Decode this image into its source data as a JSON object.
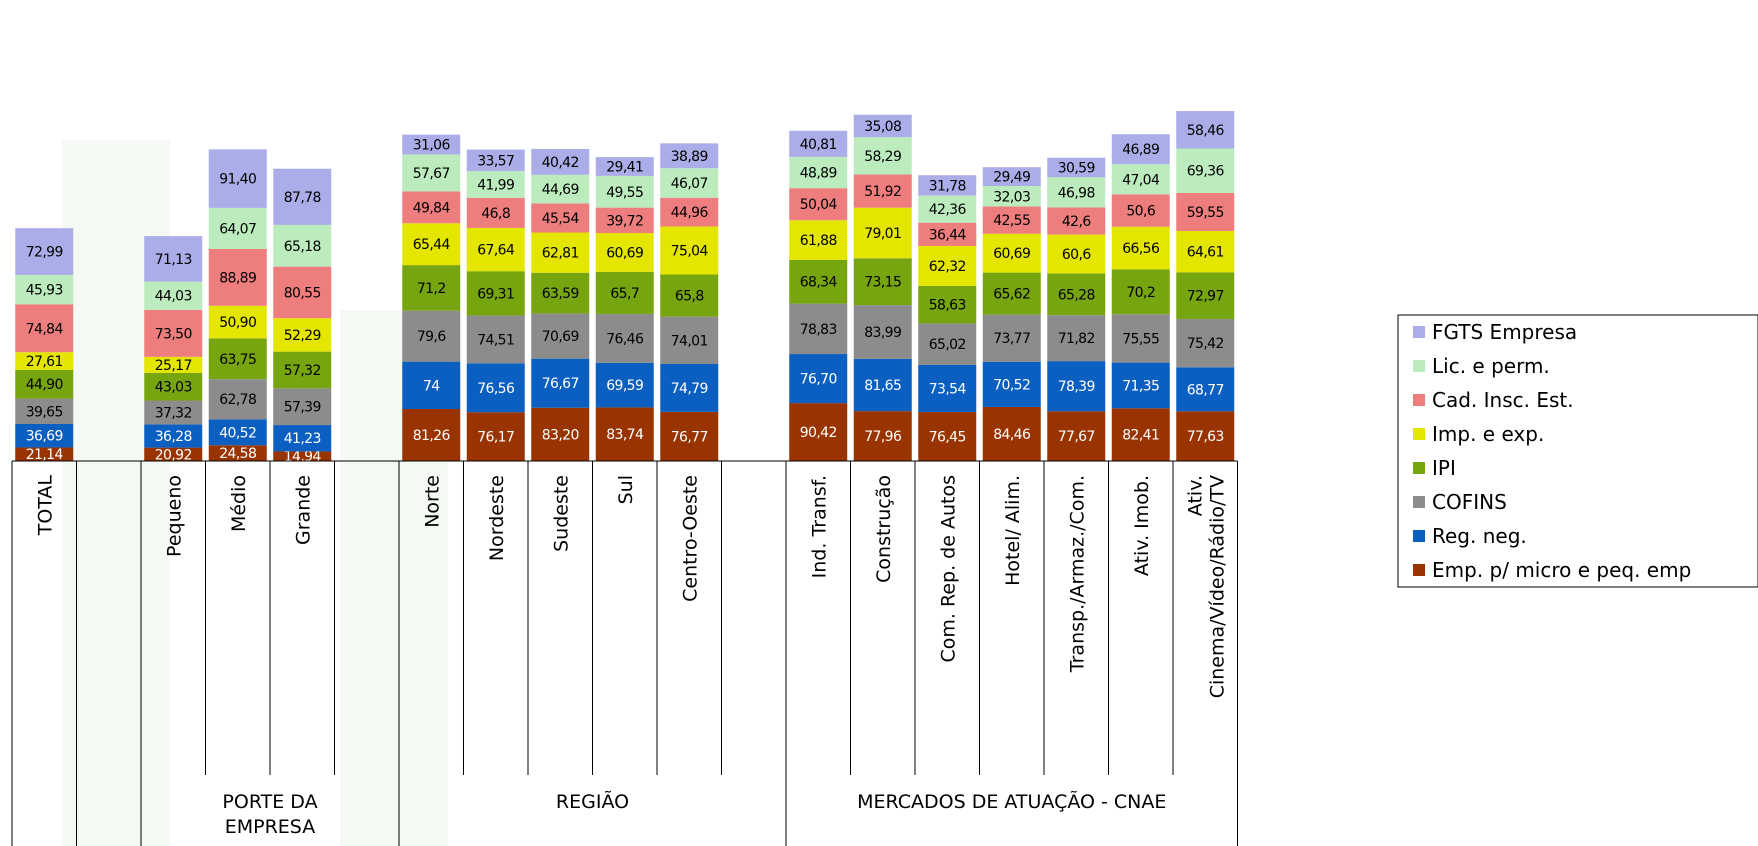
{
  "chart_data": {
    "type": "bar",
    "stacked": true,
    "legend_position": "right",
    "grid": false,
    "series": [
      {
        "name": "Emp. p/ micro e peq. emp",
        "color": "#993300"
      },
      {
        "name": "Reg. neg.",
        "color": "#0B5FC1"
      },
      {
        "name": "COFINS",
        "color": "#8C8C8C"
      },
      {
        "name": "IPI",
        "color": "#77A50F"
      },
      {
        "name": "Imp. e exp.",
        "color": "#E4E600"
      },
      {
        "name": "Cad. Insc. Est.",
        "color": "#EE7E7E"
      },
      {
        "name": "Lic. e perm.",
        "color": "#BCEBBE"
      },
      {
        "name": "FGTS Empresa",
        "color": "#ABADE8"
      }
    ],
    "categories": [
      {
        "label": "TOTAL",
        "group": 0,
        "values": [
          "21,14",
          "36,69",
          "39,65",
          "44,90",
          "27,61",
          "74,84",
          "45,93",
          "72,99"
        ]
      },
      {
        "label": "",
        "group": 0,
        "values": []
      },
      {
        "label": "Pequeno",
        "group": 1,
        "values": [
          "20,92",
          "36,28",
          "37,32",
          "43,03",
          "25,17",
          "73,50",
          "44,03",
          "71,13"
        ]
      },
      {
        "label": "Médio",
        "group": 1,
        "values": [
          "24,58",
          "40,52",
          "62,78",
          "63,75",
          "50,90",
          "88,89",
          "64,07",
          "91,40"
        ]
      },
      {
        "label": "Grande",
        "group": 1,
        "values": [
          "14,94",
          "41,23",
          "57,39",
          "57,32",
          "52,29",
          "80,55",
          "65,18",
          "87,78"
        ]
      },
      {
        "label": "",
        "group": 1,
        "values": []
      },
      {
        "label": "Norte",
        "group": 2,
        "values": [
          "81,26",
          "74",
          "79,6",
          "71,2",
          "65,44",
          "49,84",
          "57,67",
          "31,06"
        ]
      },
      {
        "label": "Nordeste",
        "group": 2,
        "values": [
          "76,17",
          "76,56",
          "74,51",
          "69,31",
          "67,64",
          "46,8",
          "41,99",
          "33,57"
        ]
      },
      {
        "label": "Sudeste",
        "group": 2,
        "values": [
          "83,20",
          "76,67",
          "70,69",
          "63,59",
          "62,81",
          "45,54",
          "44,69",
          "40,42"
        ]
      },
      {
        "label": "Sul",
        "group": 2,
        "values": [
          "83,74",
          "69,59",
          "76,46",
          "65,7",
          "60,69",
          "39,72",
          "49,55",
          "29,41"
        ]
      },
      {
        "label": "Centro-Oeste",
        "group": 2,
        "values": [
          "76,77",
          "74,79",
          "74,01",
          "65,8",
          "75,04",
          "44,96",
          "46,07",
          "38,89"
        ]
      },
      {
        "label": "",
        "group": 2,
        "values": []
      },
      {
        "label": "Ind. Transf.",
        "group": 3,
        "values": [
          "90,42",
          "76,70",
          "78,83",
          "68,34",
          "61,88",
          "50,04",
          "48,89",
          "40,81"
        ]
      },
      {
        "label": "Construção",
        "group": 3,
        "values": [
          "77,96",
          "81,65",
          "83,99",
          "73,15",
          "79,01",
          "51,92",
          "58,29",
          "35,08"
        ]
      },
      {
        "label": "Com. Rep. de Autos",
        "group": 3,
        "values": [
          "76,45",
          "73,54",
          "65,02",
          "58,63",
          "62,32",
          "36,44",
          "42,36",
          "31,78"
        ]
      },
      {
        "label": "Hotel/ Alim.",
        "group": 3,
        "values": [
          "84,46",
          "70,52",
          "73,77",
          "65,62",
          "60,69",
          "42,55",
          "32,03",
          "29,49"
        ]
      },
      {
        "label": "Transp./Armaz./Com.",
        "group": 3,
        "values": [
          "77,67",
          "78,39",
          "71,82",
          "65,28",
          "60,6",
          "42,6",
          "46,98",
          "30,59"
        ]
      },
      {
        "label": "Ativ. Imob.",
        "group": 3,
        "values": [
          "82,41",
          "71,35",
          "75,55",
          "70,2",
          "66,56",
          "50,6",
          "47,04",
          "46,89"
        ]
      },
      {
        "label": "Ativ. Cinema/Vídeo/Rádio/TV",
        "group": 3,
        "values": [
          "77,63",
          "68,77",
          "75,42",
          "72,97",
          "64,61",
          "59,55",
          "69,36",
          "58,46"
        ]
      }
    ],
    "groups": [
      "",
      "PORTE DA EMPRESA",
      "REGIÃO",
      "MERCADOS DE ATUAÇÃO - CNAE"
    ]
  }
}
